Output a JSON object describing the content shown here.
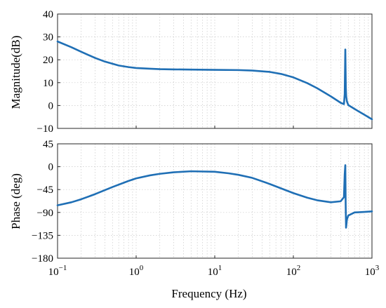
{
  "chart_data": [
    {
      "type": "line",
      "panel": "magnitude",
      "xscale": "log",
      "xlim": [
        0.1,
        1000
      ],
      "ylim": [
        -10,
        40
      ],
      "xlabel": "",
      "ylabel": "Magnitude(dB)",
      "grid": true,
      "color": "#1f6fb5",
      "y_ticks": [
        "40",
        "30",
        "20",
        "10",
        "0",
        "−10"
      ],
      "x_tick_labels": [],
      "series": [
        {
          "x": [
            0.1,
            0.15,
            0.2,
            0.3,
            0.4,
            0.6,
            0.8,
            1,
            1.5,
            2,
            3,
            5,
            10,
            20,
            30,
            50,
            70,
            100,
            150,
            200,
            300,
            400,
            440,
            450,
            458,
            465,
            470,
            480,
            500,
            600,
            800,
            1000
          ],
          "y": [
            28,
            25.5,
            23.5,
            20.8,
            19.2,
            17.5,
            16.8,
            16.4,
            16.1,
            15.9,
            15.8,
            15.7,
            15.6,
            15.5,
            15.3,
            14.7,
            13.8,
            12.3,
            9.8,
            7.6,
            4,
            1.2,
            0.6,
            5,
            24.5,
            8,
            4,
            1.8,
            0.2,
            -1.5,
            -4,
            -6
          ]
        }
      ]
    },
    {
      "type": "line",
      "panel": "phase",
      "xscale": "log",
      "xlim": [
        0.1,
        1000
      ],
      "ylim": [
        -180,
        45
      ],
      "xlabel": "Frequency (Hz)",
      "ylabel": "Phase (deg)",
      "grid": true,
      "color": "#1f6fb5",
      "y_ticks": [
        "45",
        "0",
        "−45",
        "−90",
        "−135",
        "−180"
      ],
      "x_tick_labels": [
        {
          "base": "10",
          "exp": "−1"
        },
        {
          "base": "10",
          "exp": "0"
        },
        {
          "base": "10",
          "exp": "1"
        },
        {
          "base": "10",
          "exp": "2"
        },
        {
          "base": "10",
          "exp": "3"
        }
      ],
      "series": [
        {
          "x": [
            0.1,
            0.15,
            0.2,
            0.3,
            0.5,
            0.8,
            1,
            1.5,
            2,
            3,
            5,
            10,
            15,
            20,
            30,
            50,
            100,
            150,
            200,
            300,
            400,
            440,
            450,
            458,
            463,
            468,
            472,
            480,
            500,
            600,
            800,
            1000
          ],
          "y": [
            -76,
            -70,
            -64,
            -54,
            -40,
            -28,
            -23,
            -17,
            -14,
            -11,
            -9,
            -10,
            -13,
            -16,
            -22,
            -34,
            -52,
            -61,
            -66,
            -70,
            -68,
            -60,
            -15,
            3,
            -75,
            -120,
            -115,
            -104,
            -96,
            -90,
            -89,
            -88
          ]
        }
      ]
    }
  ]
}
